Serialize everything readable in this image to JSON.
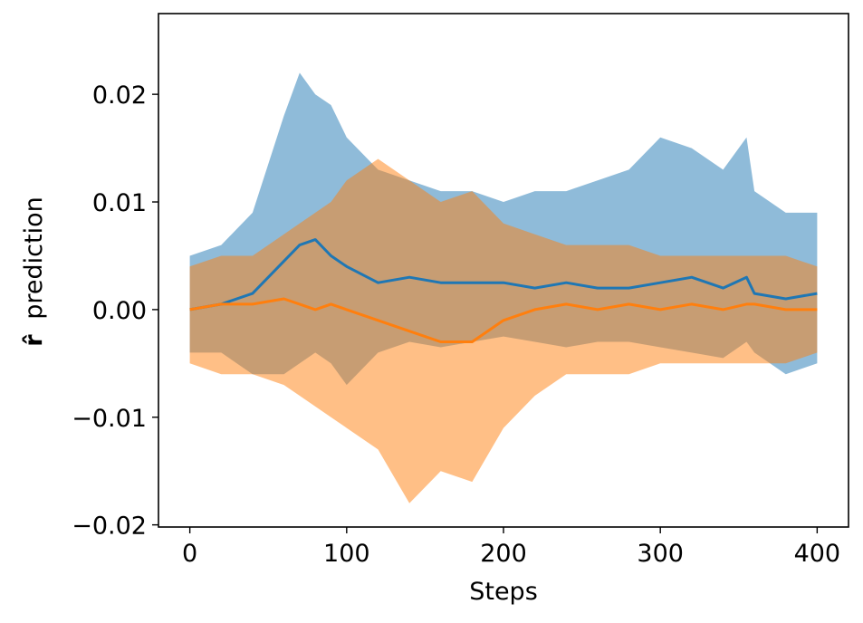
{
  "chart_data": {
    "type": "line",
    "title": "",
    "xlabel": "Steps",
    "ylabel_symbol": "r̂",
    "ylabel_text": "prediction",
    "xlim": [
      -20,
      420
    ],
    "ylim": [
      -0.0202,
      0.0275
    ],
    "xticks": [
      0,
      100,
      200,
      300,
      400
    ],
    "xtick_labels": [
      "0",
      "100",
      "200",
      "300",
      "400"
    ],
    "yticks": [
      -0.02,
      -0.01,
      0.0,
      0.01,
      0.02
    ],
    "ytick_labels": [
      "−0.02",
      "−0.01",
      "0.00",
      "0.01",
      "0.02"
    ],
    "grid": false,
    "legend": "none",
    "colors": {
      "series_1": "#1f77b4",
      "series_2": "#ff7f0e",
      "band_1": "#1f77b4",
      "band_2": "#ff7f0e"
    },
    "x": [
      0,
      20,
      40,
      60,
      70,
      80,
      90,
      100,
      120,
      140,
      160,
      180,
      200,
      220,
      240,
      260,
      280,
      300,
      320,
      340,
      355,
      360,
      380,
      400
    ],
    "series": [
      {
        "values": [
          0.0,
          0.0005,
          0.0015,
          0.0045,
          0.006,
          0.0065,
          0.005,
          0.004,
          0.0025,
          0.003,
          0.0025,
          0.0025,
          0.0025,
          0.002,
          0.0025,
          0.002,
          0.002,
          0.0025,
          0.003,
          0.002,
          0.003,
          0.0015,
          0.001,
          0.0015
        ],
        "lower": [
          -0.004,
          -0.004,
          -0.006,
          -0.006,
          -0.005,
          -0.004,
          -0.005,
          -0.007,
          -0.004,
          -0.003,
          -0.0035,
          -0.003,
          -0.0025,
          -0.003,
          -0.0035,
          -0.003,
          -0.003,
          -0.0035,
          -0.004,
          -0.0045,
          -0.003,
          -0.004,
          -0.006,
          -0.005
        ],
        "upper": [
          0.005,
          0.006,
          0.009,
          0.018,
          0.022,
          0.02,
          0.019,
          0.016,
          0.013,
          0.012,
          0.011,
          0.011,
          0.01,
          0.011,
          0.011,
          0.012,
          0.013,
          0.016,
          0.015,
          0.013,
          0.016,
          0.011,
          0.009,
          0.009
        ]
      },
      {
        "values": [
          0.0,
          0.0005,
          0.0005,
          0.001,
          0.0005,
          0.0,
          0.0005,
          0.0,
          -0.001,
          -0.002,
          -0.003,
          -0.003,
          -0.001,
          0.0,
          0.0005,
          0.0,
          0.0005,
          0.0,
          0.0005,
          0.0,
          0.0005,
          0.0005,
          0.0,
          0.0
        ],
        "lower": [
          -0.005,
          -0.006,
          -0.006,
          -0.007,
          -0.008,
          -0.009,
          -0.01,
          -0.011,
          -0.013,
          -0.018,
          -0.015,
          -0.016,
          -0.011,
          -0.008,
          -0.006,
          -0.006,
          -0.006,
          -0.005,
          -0.005,
          -0.005,
          -0.005,
          -0.005,
          -0.005,
          -0.004
        ],
        "upper": [
          0.004,
          0.005,
          0.005,
          0.007,
          0.008,
          0.009,
          0.01,
          0.012,
          0.014,
          0.012,
          0.01,
          0.011,
          0.008,
          0.007,
          0.006,
          0.006,
          0.006,
          0.005,
          0.005,
          0.005,
          0.005,
          0.005,
          0.005,
          0.004
        ]
      }
    ]
  }
}
